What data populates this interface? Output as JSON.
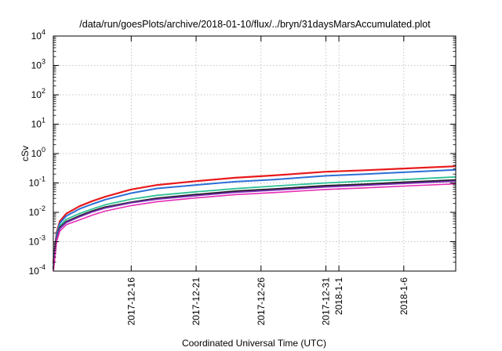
{
  "chart_data": {
    "type": "line",
    "title": "/data/run/goesPlots/archive/2018-01-10/flux/../bryn/31daysMarsAccumulated.plot",
    "xlabel": "Coordinated Universal Time (UTC)",
    "ylabel": "cSv",
    "y_scale": "log",
    "ylim": [
      0.0001,
      10000
    ],
    "xlim": [
      "2017-12-10",
      "2018-01-10"
    ],
    "grid": true,
    "y_ticks": [
      {
        "value": 0.0001,
        "base": "10",
        "exp": "-4"
      },
      {
        "value": 0.001,
        "base": "10",
        "exp": "-3"
      },
      {
        "value": 0.01,
        "base": "10",
        "exp": "-2"
      },
      {
        "value": 0.1,
        "base": "10",
        "exp": "-1"
      },
      {
        "value": 1,
        "base": "10",
        "exp": "0"
      },
      {
        "value": 10,
        "base": "10",
        "exp": "1"
      },
      {
        "value": 100,
        "base": "10",
        "exp": "2"
      },
      {
        "value": 1000,
        "base": "10",
        "exp": "3"
      },
      {
        "value": 10000,
        "base": "10",
        "exp": "4"
      }
    ],
    "x_ticks": [
      {
        "date": "2017-12-16",
        "label": "2017-12-16"
      },
      {
        "date": "2017-12-21",
        "label": "2017-12-21"
      },
      {
        "date": "2017-12-26",
        "label": "2017-12-26"
      },
      {
        "date": "2017-12-31",
        "label": "2017-12-31"
      },
      {
        "date": "2018-01-01",
        "label": "2018-1-1"
      },
      {
        "date": "2018-01-06",
        "label": "2018-1-6"
      }
    ],
    "x": [
      "2017-12-10",
      "2017-12-10T06:00",
      "2017-12-10T12:00",
      "2017-12-11",
      "2017-12-12",
      "2017-12-13",
      "2017-12-14",
      "2017-12-16",
      "2017-12-18",
      "2017-12-21",
      "2017-12-24",
      "2017-12-27",
      "2017-12-31",
      "2018-01-03",
      "2018-01-06",
      "2018-01-10"
    ],
    "series": [
      {
        "color": "#e8191c",
        "width": 2.2,
        "values": [
          0.0002,
          0.002,
          0.005,
          0.009,
          0.016,
          0.024,
          0.034,
          0.06,
          0.085,
          0.115,
          0.15,
          0.18,
          0.24,
          0.27,
          0.31,
          0.37
        ]
      },
      {
        "color": "#2b6fd6",
        "width": 2.0,
        "values": [
          0.00017,
          0.0017,
          0.0043,
          0.0075,
          0.013,
          0.019,
          0.027,
          0.045,
          0.065,
          0.085,
          0.11,
          0.13,
          0.175,
          0.2,
          0.23,
          0.28
        ]
      },
      {
        "color": "#2ebf96",
        "width": 1.8,
        "values": [
          0.00014,
          0.0014,
          0.0035,
          0.0058,
          0.009,
          0.013,
          0.018,
          0.028,
          0.038,
          0.05,
          0.064,
          0.078,
          0.1,
          0.115,
          0.13,
          0.16
        ]
      },
      {
        "color": "#1e1e1e",
        "width": 2.2,
        "values": [
          0.00012,
          0.0012,
          0.003,
          0.0048,
          0.0075,
          0.011,
          0.015,
          0.022,
          0.03,
          0.04,
          0.052,
          0.062,
          0.08,
          0.09,
          0.105,
          0.125
        ]
      },
      {
        "color": "#7b2fb5",
        "width": 1.8,
        "values": [
          0.000115,
          0.00115,
          0.0028,
          0.0045,
          0.007,
          0.0103,
          0.014,
          0.021,
          0.028,
          0.037,
          0.048,
          0.057,
          0.073,
          0.083,
          0.096,
          0.115
        ]
      },
      {
        "color": "#e62db4",
        "width": 1.6,
        "values": [
          0.0001,
          0.001,
          0.0023,
          0.0038,
          0.0055,
          0.008,
          0.011,
          0.017,
          0.023,
          0.031,
          0.04,
          0.047,
          0.06,
          0.068,
          0.078,
          0.093
        ]
      }
    ]
  }
}
